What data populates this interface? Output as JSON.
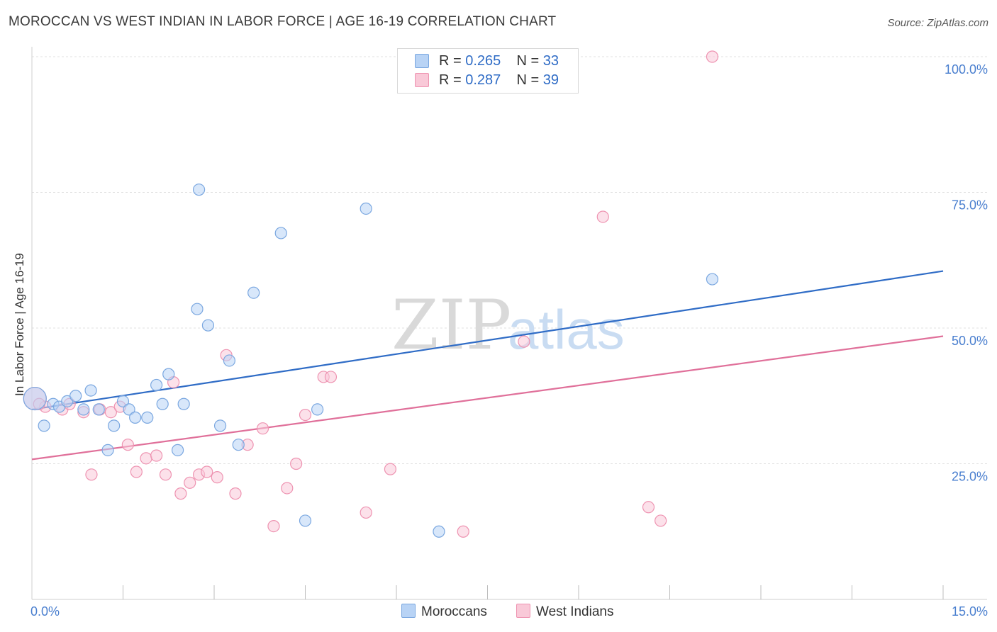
{
  "header": {
    "title": "MOROCCAN VS WEST INDIAN IN LABOR FORCE | AGE 16-19 CORRELATION CHART",
    "source": "Source: ZipAtlas.com"
  },
  "watermark": {
    "zip": "ZIP",
    "atlas": "atlas"
  },
  "legend_top": {
    "moroccans": {
      "r_label": "R =",
      "r_value": "0.265",
      "n_label": "N =",
      "n_value": "33"
    },
    "west_indians": {
      "r_label": "R =",
      "r_value": "0.287",
      "n_label": "N =",
      "n_value": "39"
    }
  },
  "legend_bottom": {
    "moroccans": "Moroccans",
    "west_indians": "West Indians"
  },
  "colors": {
    "moroccans_fill": "#b8d3f5",
    "moroccans_stroke": "#7aa7e0",
    "moroccans_line": "#2f6cc6",
    "west_indians_fill": "#f9c9d8",
    "west_indians_stroke": "#ee93b1",
    "west_indians_line": "#e0709a",
    "axis_label": "#4a7fcf"
  },
  "chart_data": {
    "type": "scatter",
    "title": "MOROCCAN VS WEST INDIAN IN LABOR FORCE | AGE 16-19 CORRELATION CHART",
    "xlabel": "",
    "ylabel": "In Labor Force | Age 16-19",
    "xlim": [
      0,
      15
    ],
    "ylim": [
      0,
      102
    ],
    "x_tick_labels": [
      {
        "value": 0,
        "label": "0.0%"
      },
      {
        "value": 15,
        "label": "15.0%"
      }
    ],
    "y_tick_labels": [
      {
        "value": 25,
        "label": "25.0%"
      },
      {
        "value": 50,
        "label": "50.0%"
      },
      {
        "value": 75,
        "label": "75.0%"
      },
      {
        "value": 100,
        "label": "100.0%"
      }
    ],
    "series": [
      {
        "name": "Moroccans",
        "R": 0.265,
        "N": 33,
        "trend": {
          "x": [
            0,
            15
          ],
          "y": [
            35.0,
            60.5
          ]
        },
        "points": [
          {
            "x": 0.05,
            "y": 37.0,
            "big": true
          },
          {
            "x": 0.2,
            "y": 32.0
          },
          {
            "x": 0.35,
            "y": 36.0
          },
          {
            "x": 0.45,
            "y": 35.5
          },
          {
            "x": 0.58,
            "y": 36.5
          },
          {
            "x": 0.72,
            "y": 37.5
          },
          {
            "x": 0.85,
            "y": 35.0
          },
          {
            "x": 0.97,
            "y": 38.5
          },
          {
            "x": 1.1,
            "y": 35.0
          },
          {
            "x": 1.25,
            "y": 27.5
          },
          {
            "x": 1.35,
            "y": 32.0
          },
          {
            "x": 1.5,
            "y": 36.5
          },
          {
            "x": 1.6,
            "y": 35.0
          },
          {
            "x": 1.7,
            "y": 33.5
          },
          {
            "x": 1.9,
            "y": 33.5
          },
          {
            "x": 2.05,
            "y": 39.5
          },
          {
            "x": 2.15,
            "y": 36.0
          },
          {
            "x": 2.25,
            "y": 41.5
          },
          {
            "x": 2.4,
            "y": 27.5
          },
          {
            "x": 2.5,
            "y": 36.0
          },
          {
            "x": 2.72,
            "y": 53.5
          },
          {
            "x": 2.75,
            "y": 75.5
          },
          {
            "x": 2.9,
            "y": 50.5
          },
          {
            "x": 3.1,
            "y": 32.0
          },
          {
            "x": 3.25,
            "y": 44.0
          },
          {
            "x": 3.4,
            "y": 28.5
          },
          {
            "x": 3.65,
            "y": 56.5
          },
          {
            "x": 4.1,
            "y": 67.5
          },
          {
            "x": 4.5,
            "y": 14.5
          },
          {
            "x": 4.7,
            "y": 35.0
          },
          {
            "x": 5.5,
            "y": 72.0
          },
          {
            "x": 6.7,
            "y": 12.5
          },
          {
            "x": 11.2,
            "y": 59.0
          }
        ]
      },
      {
        "name": "West Indians",
        "R": 0.287,
        "N": 39,
        "trend": {
          "x": [
            0,
            15
          ],
          "y": [
            25.8,
            48.5
          ]
        },
        "points": [
          {
            "x": 0.05,
            "y": 37.0,
            "big": true
          },
          {
            "x": 0.22,
            "y": 35.5
          },
          {
            "x": 0.5,
            "y": 35.0
          },
          {
            "x": 0.62,
            "y": 36.0
          },
          {
            "x": 0.85,
            "y": 34.5
          },
          {
            "x": 0.98,
            "y": 23.0
          },
          {
            "x": 1.12,
            "y": 35.0
          },
          {
            "x": 1.3,
            "y": 34.5
          },
          {
            "x": 1.45,
            "y": 35.5
          },
          {
            "x": 1.58,
            "y": 28.5
          },
          {
            "x": 1.72,
            "y": 23.5
          },
          {
            "x": 1.88,
            "y": 26.0
          },
          {
            "x": 2.05,
            "y": 26.5
          },
          {
            "x": 2.2,
            "y": 23.0
          },
          {
            "x": 2.33,
            "y": 40.0
          },
          {
            "x": 2.45,
            "y": 19.5
          },
          {
            "x": 2.6,
            "y": 21.5
          },
          {
            "x": 2.75,
            "y": 23.0
          },
          {
            "x": 2.88,
            "y": 23.5
          },
          {
            "x": 3.05,
            "y": 22.5
          },
          {
            "x": 3.2,
            "y": 45.0
          },
          {
            "x": 3.35,
            "y": 19.5
          },
          {
            "x": 3.55,
            "y": 28.5
          },
          {
            "x": 3.8,
            "y": 31.5
          },
          {
            "x": 3.98,
            "y": 13.5
          },
          {
            "x": 4.2,
            "y": 20.5
          },
          {
            "x": 4.35,
            "y": 25.0
          },
          {
            "x": 4.5,
            "y": 34.0
          },
          {
            "x": 4.8,
            "y": 41.0
          },
          {
            "x": 4.92,
            "y": 41.0
          },
          {
            "x": 5.5,
            "y": 16.0
          },
          {
            "x": 5.9,
            "y": 24.0
          },
          {
            "x": 7.1,
            "y": 12.5
          },
          {
            "x": 8.1,
            "y": 47.5
          },
          {
            "x": 9.4,
            "y": 70.5
          },
          {
            "x": 10.15,
            "y": 17.0
          },
          {
            "x": 10.35,
            "y": 14.5
          },
          {
            "x": 11.2,
            "y": 100.0
          },
          {
            "x": 0.12,
            "y": 36.0
          }
        ]
      }
    ]
  }
}
